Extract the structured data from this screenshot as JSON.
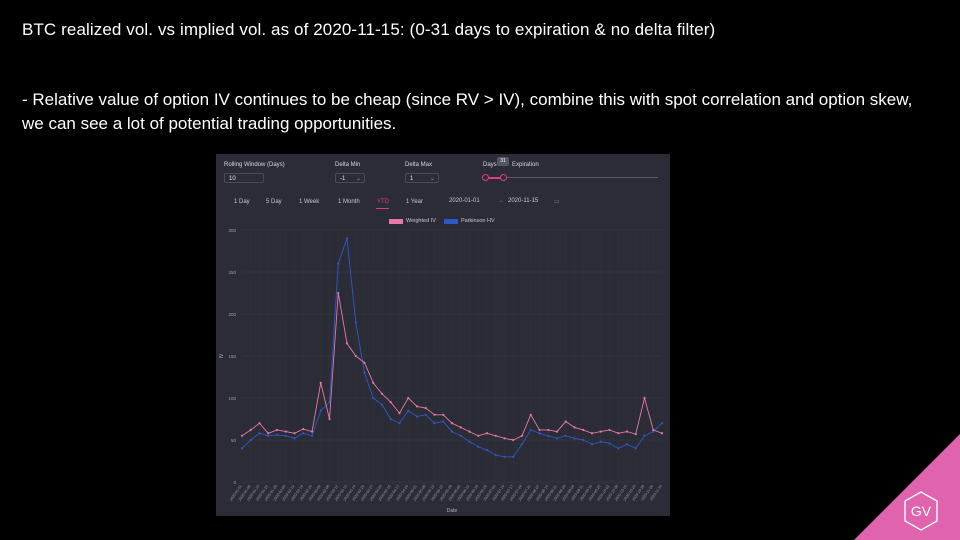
{
  "slide": {
    "title": "BTC realized vol. vs implied vol. as of 2020-11-15: (0-31 days to expiration & no delta filter)",
    "bullet": "- Relative value of option IV continues to be cheap (since RV > IV), combine this with spot correlation and option skew, we can see a lot of potential trading opportunities.",
    "logo_text": "GV",
    "logo_color": "#df63ad"
  },
  "controls": {
    "rolling_window_label": "Rolling Window (Days)",
    "rolling_window_value": "10",
    "delta_min_label": "Delta Min",
    "delta_min_value": "-1",
    "delta_max_label": "Delta Max",
    "delta_max_value": "1",
    "days_label": "Days",
    "expiration_label": "Expiration",
    "slider_tooltip": "31",
    "ranges": [
      "1 Day",
      "5 Day",
      "1 Week",
      "1 Month",
      "YTD",
      "1 Year"
    ],
    "active_range": "YTD",
    "start_date": "2020-01-01",
    "end_date": "2020-11-15",
    "date_separator": "→"
  },
  "colors": {
    "iv": "#e67aa6",
    "hv": "#2f57c9",
    "accent": "#e23a84",
    "panel": "#2b2c35"
  },
  "chart_data": {
    "type": "line",
    "x": [
      "2020-01-01",
      "2020-01-08",
      "2020-01-15",
      "2020-01-22",
      "2020-01-29",
      "2020-02-05",
      "2020-02-12",
      "2020-02-19",
      "2020-02-26",
      "2020-03-04",
      "2020-03-08",
      "2020-03-12",
      "2020-03-13",
      "2020-03-16",
      "2020-03-20",
      "2020-03-27",
      "2020-04-03",
      "2020-04-10",
      "2020-04-17",
      "2020-04-24",
      "2020-05-01",
      "2020-05-08",
      "2020-05-15",
      "2020-05-22",
      "2020-05-29",
      "2020-06-05",
      "2020-06-12",
      "2020-06-19",
      "2020-06-26",
      "2020-07-03",
      "2020-07-10",
      "2020-07-17",
      "2020-07-24",
      "2020-07-31",
      "2020-08-07",
      "2020-08-14",
      "2020-08-21",
      "2020-08-28",
      "2020-09-04",
      "2020-09-11",
      "2020-09-18",
      "2020-09-25",
      "2020-10-02",
      "2020-10-09",
      "2020-10-16",
      "2020-10-23",
      "2020-10-30",
      "2020-11-06",
      "2020-11-15"
    ],
    "series": [
      {
        "name": "Weighted IV",
        "values": [
          55,
          62,
          70,
          58,
          62,
          60,
          58,
          63,
          60,
          118,
          75,
          225,
          165,
          150,
          142,
          118,
          105,
          95,
          82,
          100,
          90,
          88,
          80,
          80,
          70,
          65,
          60,
          55,
          58,
          55,
          52,
          50,
          55,
          80,
          62,
          62,
          60,
          72,
          65,
          62,
          58,
          60,
          62,
          58,
          60,
          57,
          100,
          62,
          58
        ]
      },
      {
        "name": "Parkinson HV",
        "values": [
          40,
          50,
          58,
          55,
          56,
          55,
          52,
          58,
          55,
          85,
          95,
          260,
          290,
          190,
          130,
          100,
          92,
          75,
          70,
          85,
          78,
          80,
          70,
          72,
          60,
          55,
          48,
          42,
          38,
          32,
          30,
          30,
          45,
          62,
          58,
          55,
          52,
          55,
          52,
          50,
          45,
          48,
          46,
          40,
          45,
          40,
          55,
          60,
          70
        ]
      }
    ],
    "xlabel": "Date",
    "ylabel": "IV",
    "ylim": [
      0,
      300
    ],
    "yticks": [
      0,
      50,
      100,
      150,
      200,
      250,
      300
    ],
    "legend": "top-center",
    "grid": true
  }
}
